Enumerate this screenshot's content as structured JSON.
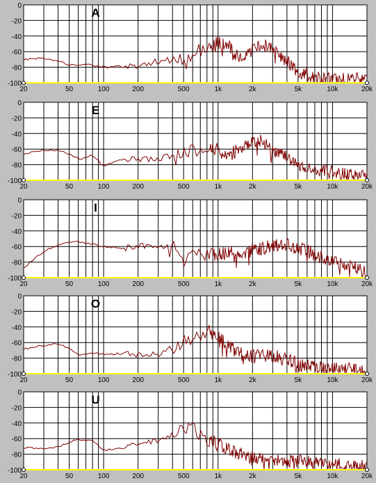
{
  "colors": {
    "background": "#c0c0c0",
    "plot_area": "#ffffff",
    "grid": "#000000",
    "baseline": "#ffff00",
    "trace": "#800000"
  },
  "chart_data": [
    {
      "type": "line",
      "title": "A",
      "xscale": "log",
      "xlim": [
        20,
        20000
      ],
      "ylim": [
        -100,
        0
      ],
      "xticks": [
        "20",
        "50",
        "100",
        "200",
        "500",
        "1k",
        "2k",
        "5k",
        "10k",
        "20k"
      ],
      "yticks": [
        "0",
        "-20",
        "-40",
        "-60",
        "-80",
        "-100"
      ],
      "grid": true,
      "series": [
        {
          "x": [
            20,
            30,
            40,
            50,
            70,
            100,
            150,
            200,
            300,
            500,
            700,
            900,
            1000,
            1200,
            1500,
            2000,
            2500,
            3000,
            4000,
            5000,
            7000,
            10000,
            15000,
            20000
          ],
          "y": [
            -70,
            -68,
            -72,
            -77,
            -76,
            -80,
            -79,
            -78,
            -72,
            -70,
            -58,
            -52,
            -48,
            -52,
            -68,
            -60,
            -52,
            -58,
            -72,
            -85,
            -94,
            -96,
            -95,
            -97
          ]
        }
      ]
    },
    {
      "type": "line",
      "title": "E",
      "xscale": "log",
      "xlim": [
        20,
        20000
      ],
      "ylim": [
        -100,
        0
      ],
      "xticks": [
        "20",
        "50",
        "100",
        "200",
        "500",
        "1k",
        "2k",
        "5k",
        "10k",
        "20k"
      ],
      "yticks": [
        "0",
        "-20",
        "-40",
        "-60",
        "-80",
        "-100"
      ],
      "grid": true,
      "series": [
        {
          "x": [
            20,
            30,
            40,
            50,
            60,
            80,
            100,
            150,
            200,
            300,
            500,
            700,
            900,
            1000,
            1200,
            1500,
            2000,
            2500,
            3000,
            4000,
            5000,
            7000,
            10000,
            15000,
            20000
          ],
          "y": [
            -66,
            -61,
            -62,
            -66,
            -73,
            -68,
            -82,
            -72,
            -74,
            -72,
            -66,
            -60,
            -58,
            -62,
            -68,
            -62,
            -52,
            -50,
            -62,
            -70,
            -78,
            -86,
            -90,
            -93,
            -96
          ]
        }
      ]
    },
    {
      "type": "line",
      "title": "I",
      "xscale": "log",
      "xlim": [
        20,
        20000
      ],
      "ylim": [
        -100,
        0
      ],
      "xticks": [
        "20",
        "50",
        "100",
        "200",
        "500",
        "1k",
        "2k",
        "5k",
        "10k",
        "20k"
      ],
      "yticks": [
        "0",
        "-20",
        "-40",
        "-60",
        "-80",
        "-100"
      ],
      "grid": true,
      "series": [
        {
          "x": [
            20,
            30,
            40,
            50,
            60,
            80,
            100,
            150,
            200,
            300,
            400,
            500,
            700,
            1000,
            1500,
            2000,
            3000,
            4000,
            5000,
            7000,
            10000,
            15000,
            20000
          ],
          "y": [
            -87,
            -66,
            -58,
            -55,
            -54,
            -57,
            -60,
            -62,
            -60,
            -58,
            -62,
            -68,
            -72,
            -70,
            -68,
            -65,
            -60,
            -58,
            -62,
            -70,
            -78,
            -86,
            -94
          ]
        }
      ]
    },
    {
      "type": "line",
      "title": "O",
      "xscale": "log",
      "xlim": [
        20,
        20000
      ],
      "ylim": [
        -100,
        0
      ],
      "xticks": [
        "20",
        "50",
        "100",
        "200",
        "500",
        "1k",
        "2k",
        "5k",
        "10k",
        "20k"
      ],
      "yticks": [
        "0",
        "-20",
        "-40",
        "-60",
        "-80",
        "-100"
      ],
      "grid": true,
      "series": [
        {
          "x": [
            20,
            30,
            40,
            50,
            60,
            80,
            100,
            150,
            200,
            300,
            400,
            500,
            600,
            700,
            800,
            1000,
            1200,
            1500,
            2000,
            3000,
            4000,
            5000,
            7000,
            10000,
            15000,
            20000
          ],
          "y": [
            -68,
            -64,
            -62,
            -67,
            -76,
            -73,
            -75,
            -74,
            -75,
            -76,
            -66,
            -58,
            -54,
            -50,
            -45,
            -52,
            -62,
            -74,
            -78,
            -76,
            -82,
            -88,
            -92,
            -93,
            -94,
            -96
          ]
        }
      ]
    },
    {
      "type": "line",
      "title": "U",
      "xscale": "log",
      "xlim": [
        20,
        20000
      ],
      "ylim": [
        -100,
        0
      ],
      "xticks": [
        "20",
        "50",
        "100",
        "200",
        "500",
        "1k",
        "2k",
        "5k",
        "10k",
        "20k"
      ],
      "yticks": [
        "0",
        "-20",
        "-40",
        "-60",
        "-80",
        "-100"
      ],
      "grid": true,
      "series": [
        {
          "x": [
            20,
            30,
            40,
            50,
            60,
            80,
            100,
            150,
            200,
            300,
            400,
            500,
            600,
            700,
            1000,
            1500,
            2000,
            3000,
            4000,
            5000,
            7000,
            10000,
            15000,
            20000
          ],
          "y": [
            -72,
            -73,
            -71,
            -65,
            -61,
            -63,
            -75,
            -72,
            -66,
            -62,
            -56,
            -50,
            -42,
            -56,
            -68,
            -78,
            -84,
            -88,
            -90,
            -89,
            -90,
            -92,
            -94,
            -96
          ]
        }
      ]
    }
  ]
}
